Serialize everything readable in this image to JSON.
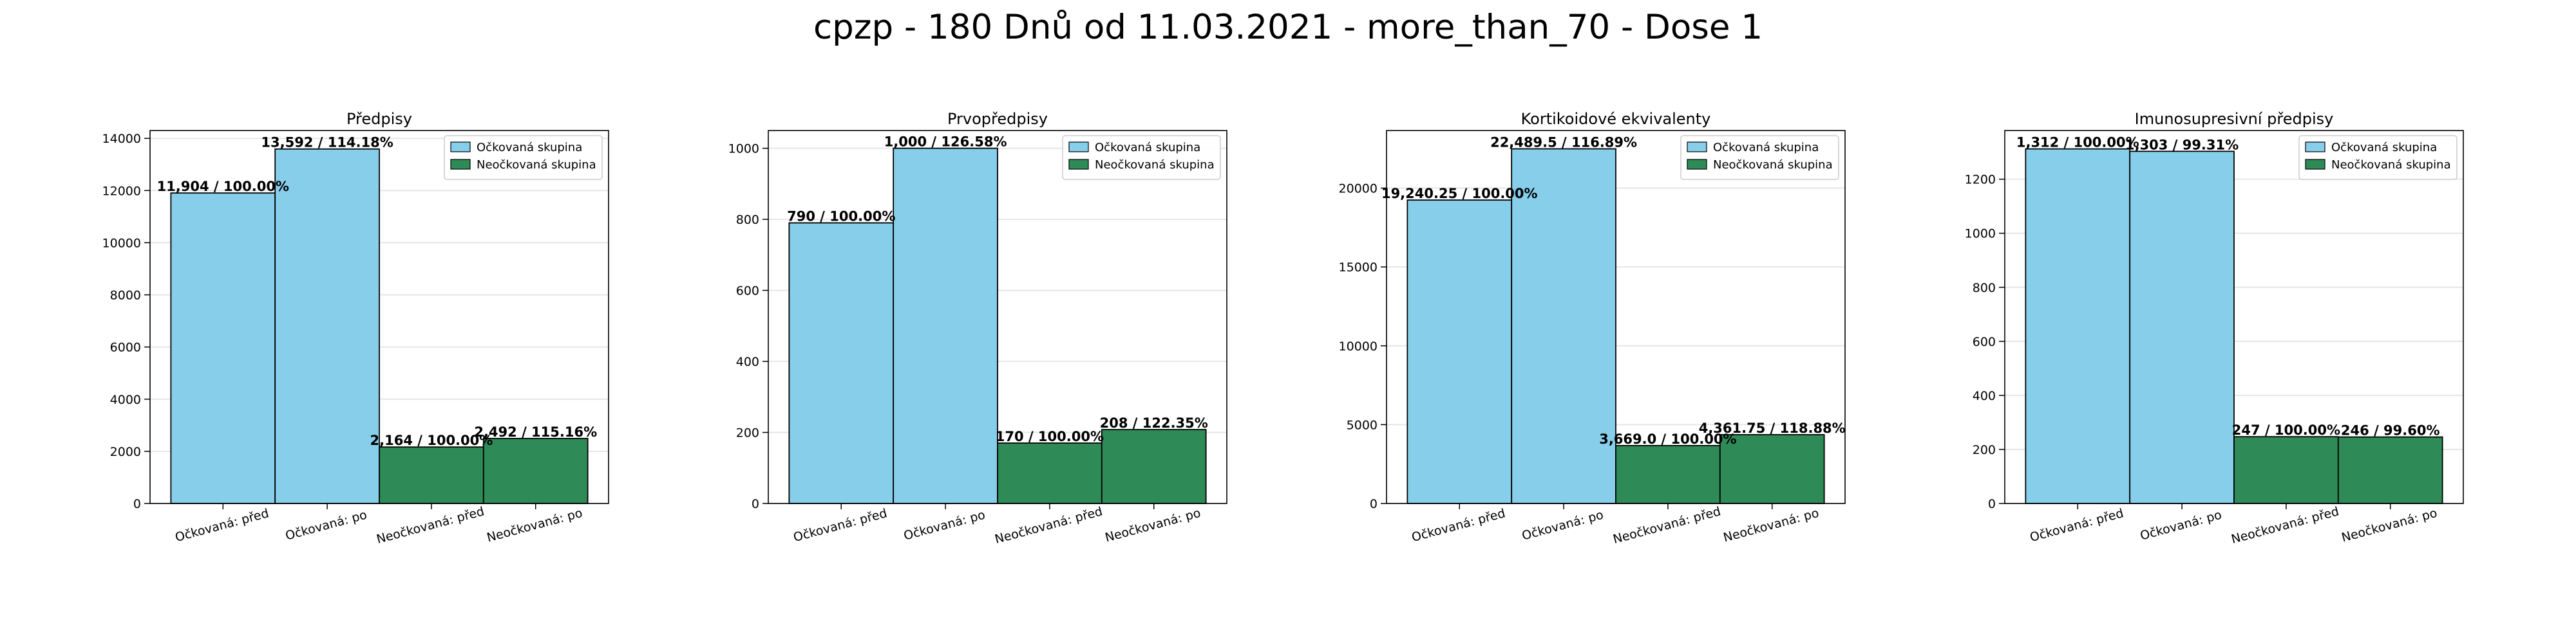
{
  "figure": {
    "title": "cpzp - 180 Dnů od 11.03.2021 - more_than_70 - Dose 1"
  },
  "colors": {
    "vaccinated": "#87ceeb",
    "unvaccinated": "#2e8b57",
    "edge": "#000000",
    "grid": "#e6e6e6"
  },
  "chart_data": [
    {
      "type": "bar",
      "title": "Předpisy",
      "xlabel": "",
      "ylabel": "",
      "categories": [
        "Očkovaná: před",
        "Očkovaná: po",
        "Neočkovaná: před",
        "Neočkovaná: po"
      ],
      "values": [
        11904,
        13592,
        2164,
        2492
      ],
      "groups": [
        "vaccinated",
        "vaccinated",
        "unvaccinated",
        "unvaccinated"
      ],
      "data_labels": [
        "11,904 / 100.00%",
        "13,592 / 114.18%",
        "2,164 / 100.00%",
        "2,492 / 115.16%"
      ],
      "yticks": [
        0,
        2000,
        4000,
        6000,
        8000,
        10000,
        12000,
        14000
      ],
      "ylim": [
        0,
        14300
      ],
      "legend": {
        "placement": "top-right",
        "entries": [
          "Očkovaná skupina",
          "Neočkovaná skupina"
        ]
      },
      "grid": true
    },
    {
      "type": "bar",
      "title": "Prvopředpisy",
      "xlabel": "",
      "ylabel": "",
      "categories": [
        "Očkovaná: před",
        "Očkovaná: po",
        "Neočkovaná: před",
        "Neočkovaná: po"
      ],
      "values": [
        790,
        1000,
        170,
        208
      ],
      "groups": [
        "vaccinated",
        "vaccinated",
        "unvaccinated",
        "unvaccinated"
      ],
      "data_labels": [
        "790 / 100.00%",
        "1,000 / 126.58%",
        "170 / 100.00%",
        "208 / 122.35%"
      ],
      "yticks": [
        0,
        200,
        400,
        600,
        800,
        1000
      ],
      "ylim": [
        0,
        1050
      ],
      "legend": {
        "placement": "top-right",
        "entries": [
          "Očkovaná skupina",
          "Neočkovaná skupina"
        ]
      },
      "grid": true
    },
    {
      "type": "bar",
      "title": "Kortikoidové ekvivalenty",
      "xlabel": "",
      "ylabel": "",
      "categories": [
        "Očkovaná: před",
        "Očkovaná: po",
        "Neočkovaná: před",
        "Neočkovaná: po"
      ],
      "values": [
        19240.25,
        22489.5,
        3669.0,
        4361.75
      ],
      "groups": [
        "vaccinated",
        "vaccinated",
        "unvaccinated",
        "unvaccinated"
      ],
      "data_labels": [
        "19,240.25 / 100.00%",
        "22,489.5 / 116.89%",
        "3,669.0 / 100.00%",
        "4,361.75 / 118.88%"
      ],
      "yticks": [
        0,
        5000,
        10000,
        15000,
        20000
      ],
      "ylim": [
        0,
        23650
      ],
      "legend": {
        "placement": "top-right",
        "entries": [
          "Očkovaná skupina",
          "Neočkovaná skupina"
        ]
      },
      "grid": true
    },
    {
      "type": "bar",
      "title": "Imunosupresivní předpisy",
      "xlabel": "",
      "ylabel": "",
      "categories": [
        "Očkovaná: před",
        "Očkovaná: po",
        "Neočkovaná: před",
        "Neočkovaná: po"
      ],
      "values": [
        1312,
        1303,
        247,
        246
      ],
      "groups": [
        "vaccinated",
        "vaccinated",
        "unvaccinated",
        "unvaccinated"
      ],
      "data_labels": [
        "1,312 / 100.00%",
        "1,303 / 99.31%",
        "247 / 100.00%",
        "246 / 99.60%"
      ],
      "yticks": [
        0,
        200,
        400,
        600,
        800,
        1000,
        1200
      ],
      "ylim": [
        0,
        1380
      ],
      "legend": {
        "placement": "top-right",
        "entries": [
          "Očkovaná skupina",
          "Neočkovaná skupina"
        ]
      },
      "grid": true
    }
  ]
}
